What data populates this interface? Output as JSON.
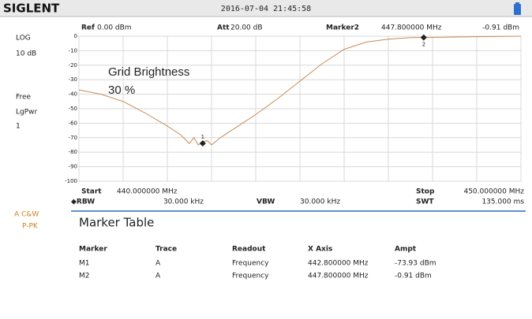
{
  "header": {
    "logo": "SIGLENT",
    "datetime": "2016-07-04  21:45:58"
  },
  "left_panel": {
    "scale": "LOG",
    "div": "10 dB",
    "mode": "Free",
    "detector": "LgPwr",
    "avg": "1",
    "trace_mode": "A C&W",
    "trace_detector": "P-PK"
  },
  "info": {
    "ref_label": "Ref",
    "ref": "0.00 dBm",
    "att_label": "Att",
    "att": "20.00 dB",
    "marker_label": "Marker2",
    "marker_freq": "447.800000 MHz",
    "marker_ampt": "-0.91 dBm"
  },
  "plot": {
    "ylim": [
      -100,
      0
    ],
    "yticks": [
      0,
      -10,
      -20,
      -30,
      -40,
      -50,
      -60,
      -70,
      -80,
      -90,
      -100
    ],
    "xlim": [
      440,
      450
    ],
    "overlay": [
      "Grid Brightness",
      "30 %"
    ],
    "trace": {
      "color": "#c98a55",
      "x": [
        440,
        440.5,
        441,
        441.5,
        442,
        442.3,
        442.5,
        442.6,
        442.7,
        442.8,
        442.9,
        443.0,
        443.2,
        443.6,
        444,
        444.5,
        445,
        445.5,
        446,
        446.5,
        447,
        447.5,
        448,
        449,
        450
      ],
      "values": [
        -37,
        -40,
        -45,
        -53,
        -62,
        -68,
        -74,
        -70,
        -75,
        -73,
        -72,
        -75,
        -70,
        -62,
        -54,
        -43,
        -31,
        -19,
        -9,
        -4,
        -2,
        -1,
        -0.8,
        -0.3,
        0
      ]
    },
    "markers": [
      {
        "label": "1",
        "x": 442.8,
        "y": -73.93
      },
      {
        "label": "2",
        "x": 447.8,
        "y": -0.91
      }
    ]
  },
  "footer": {
    "start_label": "Start",
    "start": "440.000000 MHz",
    "stop_label": "Stop",
    "stop": "450.000000 MHz",
    "rbw_label": "◆RBW",
    "rbw": "30.000 kHz",
    "vbw_label": "VBW",
    "vbw": "30.000 kHz",
    "swt_label": "SWT",
    "swt": "135.000 ms"
  },
  "marker_table": {
    "title": "Marker Table",
    "columns": [
      "Marker",
      "Trace",
      "Readout",
      "X Axis",
      "Ampt"
    ],
    "rows": [
      [
        "M1",
        "A",
        "Frequency",
        "442.800000 MHz",
        "-73.93 dBm"
      ],
      [
        "M2",
        "A",
        "Frequency",
        "447.800000 MHz",
        "-0.91 dBm"
      ]
    ]
  }
}
